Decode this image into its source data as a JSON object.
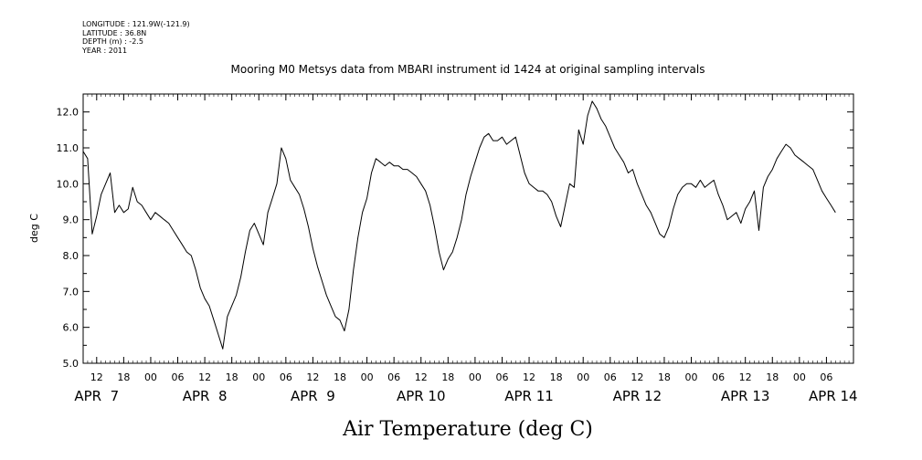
{
  "header": {
    "longitude": "LONGITUDE : 121.9W(-121.9)",
    "latitude": "LATITUDE : 36.8N",
    "depth": "DEPTH (m) : -2.5",
    "year": "YEAR : 2011"
  },
  "chart_data": {
    "type": "line",
    "title": "Mooring M0 Metsys data from MBARI instrument id 1424 at original sampling intervals",
    "xlabel": "Air Temperature (deg C)",
    "ylabel": "deg C",
    "ylim": [
      5.0,
      12.5
    ],
    "xlim_hours": [
      0,
      171
    ],
    "y_ticks": [
      "5.0",
      "6.0",
      "7.0",
      "8.0",
      "9.0",
      "10.0",
      "11.0",
      "12.0"
    ],
    "x_hour_ticks": [
      "12",
      "18",
      "00",
      "06",
      "12",
      "18",
      "00",
      "06",
      "12",
      "18",
      "00",
      "06",
      "12",
      "18",
      "00",
      "06",
      "12",
      "18",
      "00",
      "06",
      "12",
      "18",
      "00",
      "06",
      "12",
      "18",
      "00",
      "06"
    ],
    "x_day_labels": [
      "APR  7",
      "APR  8",
      "APR  9",
      "APR 10",
      "APR 11",
      "APR 12",
      "APR 13",
      "APR 14"
    ],
    "grid": false,
    "series": [
      {
        "values": [
          [
            0,
            10.9
          ],
          [
            1,
            10.7
          ],
          [
            2,
            8.6
          ],
          [
            3,
            9.1
          ],
          [
            4,
            9.7
          ],
          [
            5,
            10.0
          ],
          [
            6,
            10.3
          ],
          [
            7,
            9.2
          ],
          [
            8,
            9.4
          ],
          [
            9,
            9.2
          ],
          [
            10,
            9.3
          ],
          [
            11,
            9.9
          ],
          [
            12,
            9.5
          ],
          [
            13,
            9.4
          ],
          [
            14,
            9.2
          ],
          [
            15,
            9.0
          ],
          [
            16,
            9.2
          ],
          [
            17,
            9.1
          ],
          [
            18,
            9.0
          ],
          [
            19,
            8.9
          ],
          [
            20,
            8.7
          ],
          [
            21,
            8.5
          ],
          [
            22,
            8.3
          ],
          [
            23,
            8.1
          ],
          [
            24,
            8.0
          ],
          [
            25,
            7.6
          ],
          [
            26,
            7.1
          ],
          [
            27,
            6.8
          ],
          [
            28,
            6.6
          ],
          [
            29,
            6.2
          ],
          [
            30,
            5.8
          ],
          [
            31,
            5.4
          ],
          [
            32,
            6.3
          ],
          [
            33,
            6.6
          ],
          [
            34,
            6.9
          ],
          [
            35,
            7.4
          ],
          [
            36,
            8.1
          ],
          [
            37,
            8.7
          ],
          [
            38,
            8.9
          ],
          [
            39,
            8.6
          ],
          [
            40,
            8.3
          ],
          [
            41,
            9.2
          ],
          [
            42,
            9.6
          ],
          [
            43,
            10.0
          ],
          [
            44,
            11.0
          ],
          [
            45,
            10.7
          ],
          [
            46,
            10.1
          ],
          [
            47,
            9.9
          ],
          [
            48,
            9.7
          ],
          [
            49,
            9.3
          ],
          [
            50,
            8.8
          ],
          [
            51,
            8.2
          ],
          [
            52,
            7.7
          ],
          [
            53,
            7.3
          ],
          [
            54,
            6.9
          ],
          [
            55,
            6.6
          ],
          [
            56,
            6.3
          ],
          [
            57,
            6.2
          ],
          [
            58,
            5.9
          ],
          [
            59,
            6.5
          ],
          [
            60,
            7.6
          ],
          [
            61,
            8.5
          ],
          [
            62,
            9.2
          ],
          [
            63,
            9.6
          ],
          [
            64,
            10.3
          ],
          [
            65,
            10.7
          ],
          [
            66,
            10.6
          ],
          [
            67,
            10.5
          ],
          [
            68,
            10.6
          ],
          [
            69,
            10.5
          ],
          [
            70,
            10.5
          ],
          [
            71,
            10.4
          ],
          [
            72,
            10.4
          ],
          [
            73,
            10.3
          ],
          [
            74,
            10.2
          ],
          [
            75,
            10.0
          ],
          [
            76,
            9.8
          ],
          [
            77,
            9.4
          ],
          [
            78,
            8.8
          ],
          [
            79,
            8.1
          ],
          [
            80,
            7.6
          ],
          [
            81,
            7.9
          ],
          [
            82,
            8.1
          ],
          [
            83,
            8.5
          ],
          [
            84,
            9.0
          ],
          [
            85,
            9.7
          ],
          [
            86,
            10.2
          ],
          [
            87,
            10.6
          ],
          [
            88,
            11.0
          ],
          [
            89,
            11.3
          ],
          [
            90,
            11.4
          ],
          [
            91,
            11.2
          ],
          [
            92,
            11.2
          ],
          [
            93,
            11.3
          ],
          [
            94,
            11.1
          ],
          [
            95,
            11.2
          ],
          [
            96,
            11.3
          ],
          [
            97,
            10.8
          ],
          [
            98,
            10.3
          ],
          [
            99,
            10.0
          ],
          [
            100,
            9.9
          ],
          [
            101,
            9.8
          ],
          [
            102,
            9.8
          ],
          [
            103,
            9.7
          ],
          [
            104,
            9.5
          ],
          [
            105,
            9.1
          ],
          [
            106,
            8.8
          ],
          [
            107,
            9.4
          ],
          [
            108,
            10.0
          ],
          [
            109,
            9.9
          ],
          [
            110,
            11.5
          ],
          [
            111,
            11.1
          ],
          [
            112,
            11.9
          ],
          [
            113,
            12.3
          ],
          [
            114,
            12.1
          ],
          [
            115,
            11.8
          ],
          [
            116,
            11.6
          ],
          [
            117,
            11.3
          ],
          [
            118,
            11.0
          ],
          [
            119,
            10.8
          ],
          [
            120,
            10.6
          ],
          [
            121,
            10.3
          ],
          [
            122,
            10.4
          ],
          [
            123,
            10.0
          ],
          [
            124,
            9.7
          ],
          [
            125,
            9.4
          ],
          [
            126,
            9.2
          ],
          [
            127,
            8.9
          ],
          [
            128,
            8.6
          ],
          [
            129,
            8.5
          ],
          [
            130,
            8.8
          ],
          [
            131,
            9.3
          ],
          [
            132,
            9.7
          ],
          [
            133,
            9.9
          ],
          [
            134,
            10.0
          ],
          [
            135,
            10.0
          ],
          [
            136,
            9.9
          ],
          [
            137,
            10.1
          ],
          [
            138,
            9.9
          ],
          [
            139,
            10.0
          ],
          [
            140,
            10.1
          ],
          [
            141,
            9.7
          ],
          [
            142,
            9.4
          ],
          [
            143,
            9.0
          ],
          [
            144,
            9.1
          ],
          [
            145,
            9.2
          ],
          [
            146,
            8.9
          ],
          [
            147,
            9.3
          ],
          [
            148,
            9.5
          ],
          [
            149,
            9.8
          ],
          [
            150,
            8.7
          ],
          [
            151,
            9.9
          ],
          [
            152,
            10.2
          ],
          [
            153,
            10.4
          ],
          [
            154,
            10.7
          ],
          [
            155,
            10.9
          ],
          [
            156,
            11.1
          ],
          [
            157,
            11.0
          ],
          [
            158,
            10.8
          ],
          [
            159,
            10.7
          ],
          [
            160,
            10.6
          ],
          [
            161,
            10.5
          ],
          [
            162,
            10.4
          ],
          [
            163,
            10.1
          ],
          [
            164,
            9.8
          ],
          [
            165,
            9.6
          ],
          [
            166,
            9.4
          ],
          [
            167,
            9.2
          ]
        ]
      }
    ]
  }
}
